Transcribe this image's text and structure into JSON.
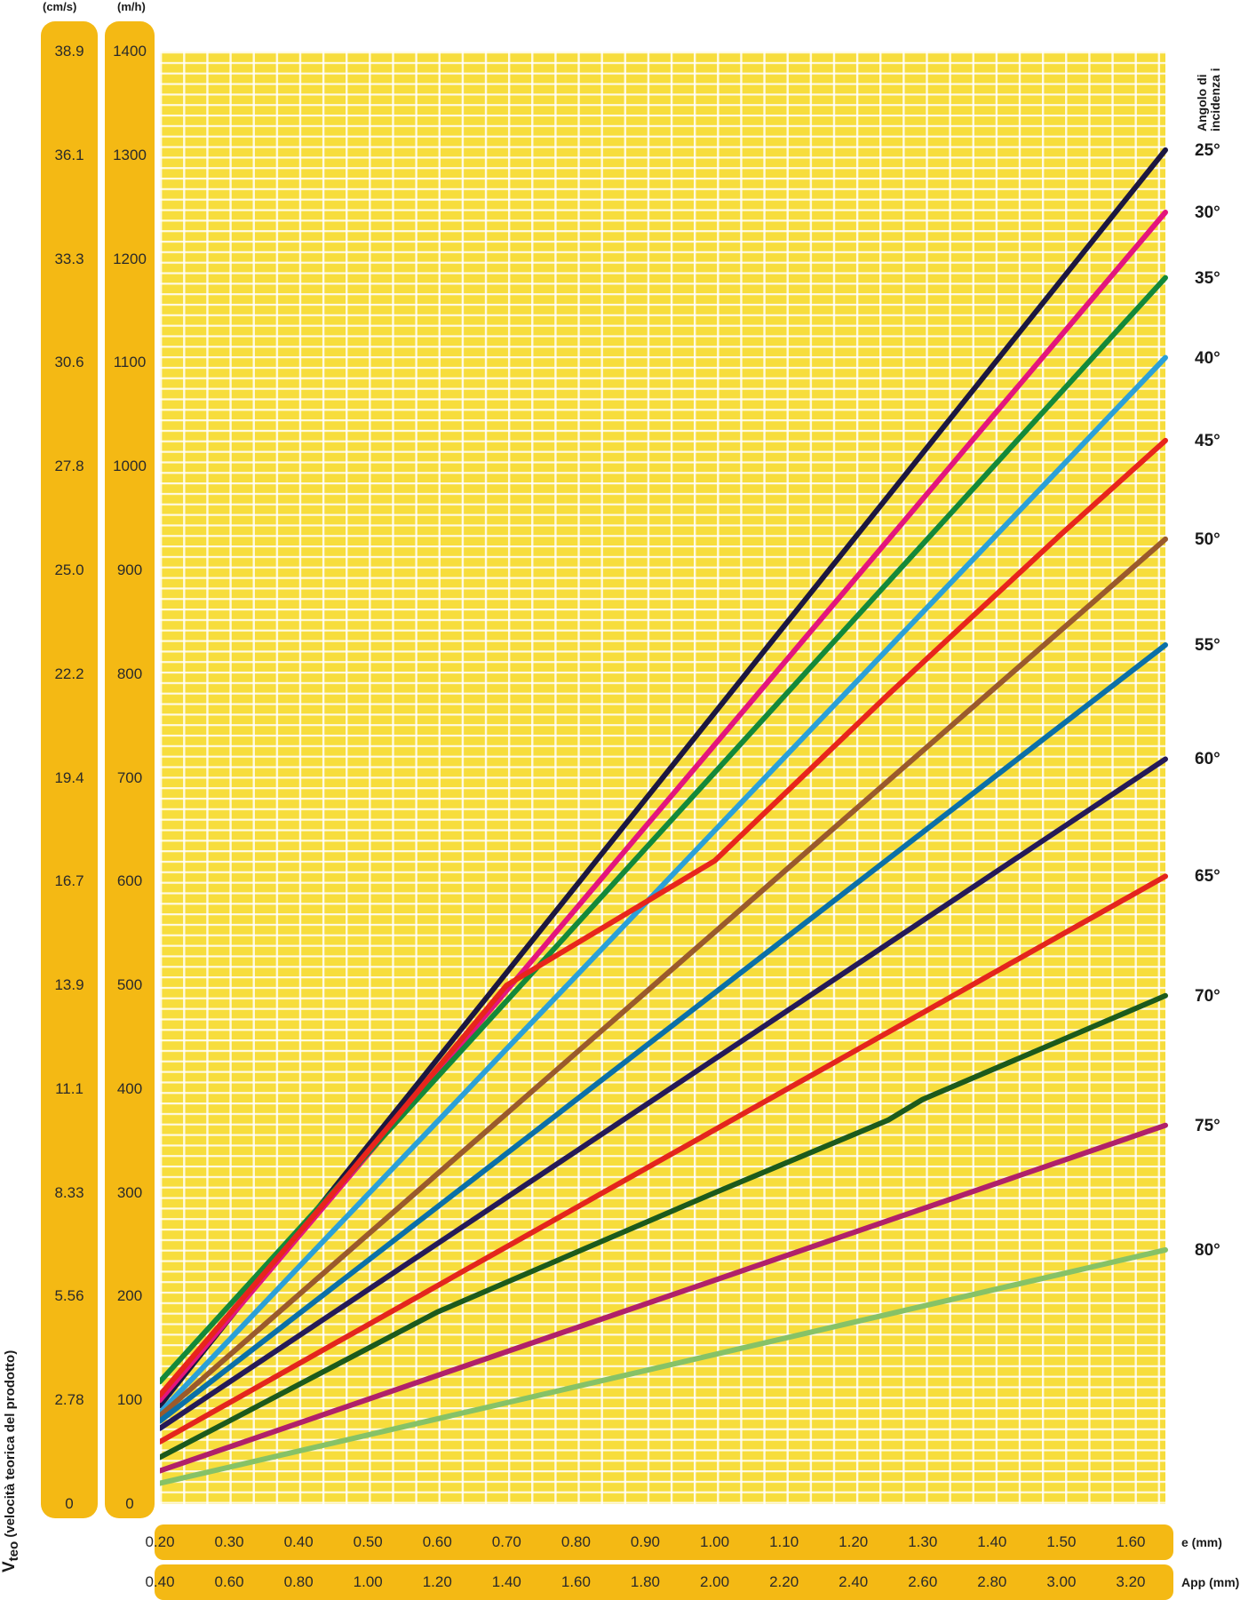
{
  "axes": {
    "y_unit_cms": "(cm/s)",
    "y_unit_mh": "(m/h)",
    "y_title_main": "V",
    "y_title_sub": "teo",
    "y_title_rest": " (velocità teorica del prodotto)",
    "y_ticks_mh": [
      "0",
      "100",
      "200",
      "300",
      "400",
      "500",
      "600",
      "700",
      "800",
      "900",
      "1000",
      "1100",
      "1200",
      "1300",
      "1400"
    ],
    "y_ticks_cms": [
      "0",
      "2.78",
      "5.56",
      "8.33",
      "11.1",
      "13.9",
      "16.7",
      "19.4",
      "22.2",
      "25.0",
      "27.8",
      "30.6",
      "33.3",
      "36.1",
      "38.9"
    ],
    "x_ticks_e": [
      "0.20",
      "0.30",
      "0.40",
      "0.50",
      "0.60",
      "0.70",
      "0.80",
      "0.90",
      "1.00",
      "1.10",
      "1.20",
      "1.30",
      "1.40",
      "1.50",
      "1.60"
    ],
    "x_unit_e": "e (mm)",
    "x_ticks_app": [
      "0.40",
      "0.60",
      "0.80",
      "1.00",
      "1.20",
      "1.40",
      "1.60",
      "1.80",
      "2.00",
      "2.20",
      "2.40",
      "2.60",
      "2.80",
      "3.00",
      "3.20"
    ],
    "x_unit_app": "App (mm)",
    "angle_title_1": "Angolo di",
    "angle_title_2": "incidenza i"
  },
  "chart_data": {
    "type": "line",
    "xlabel": "e (mm)",
    "ylabel": "Vteo (velocità teorica del prodotto)",
    "xlim": [
      0.2,
      1.65
    ],
    "ylim": [
      0,
      1400
    ],
    "grid": true,
    "background_color": "#f7dd3c",
    "series": [
      {
        "name": "25°",
        "color": "#1c1740",
        "points": [
          [
            0.2,
            95
          ],
          [
            1.65,
            1305
          ]
        ]
      },
      {
        "name": "30°",
        "color": "#e4157d",
        "points": [
          [
            0.2,
            100
          ],
          [
            1.65,
            1245
          ]
        ]
      },
      {
        "name": "35°",
        "color": "#13893a",
        "points": [
          [
            0.2,
            118
          ],
          [
            1.65,
            1182
          ]
        ]
      },
      {
        "name": "40°",
        "color": "#2ba0d8",
        "points": [
          [
            0.2,
            88
          ],
          [
            1.65,
            1105
          ]
        ]
      },
      {
        "name": "45°",
        "color": "#e8251c",
        "points": [
          [
            0.2,
            105
          ],
          [
            0.45,
            300
          ],
          [
            0.7,
            500
          ],
          [
            1.0,
            620
          ],
          [
            1.25,
            780
          ],
          [
            1.5,
            935
          ],
          [
            1.65,
            1025
          ]
        ]
      },
      {
        "name": "50°",
        "color": "#9a5a2c",
        "points": [
          [
            0.2,
            85
          ],
          [
            1.65,
            930
          ]
        ]
      },
      {
        "name": "55°",
        "color": "#0b70a8",
        "points": [
          [
            0.2,
            80
          ],
          [
            1.65,
            828
          ]
        ]
      },
      {
        "name": "60°",
        "color": "#251a58",
        "points": [
          [
            0.2,
            73
          ],
          [
            1.65,
            718
          ]
        ]
      },
      {
        "name": "65°",
        "color": "#e4251d",
        "points": [
          [
            0.2,
            60
          ],
          [
            1.65,
            605
          ]
        ]
      },
      {
        "name": "70°",
        "color": "#1c5a1c",
        "points": [
          [
            0.2,
            45
          ],
          [
            0.6,
            185
          ],
          [
            1.0,
            300
          ],
          [
            1.25,
            370
          ],
          [
            1.3,
            390
          ],
          [
            1.65,
            490
          ]
        ]
      },
      {
        "name": "75°",
        "color": "#b0206a",
        "points": [
          [
            0.2,
            32
          ],
          [
            1.65,
            365
          ]
        ]
      },
      {
        "name": "80°",
        "color": "#86c267",
        "points": [
          [
            0.2,
            20
          ],
          [
            1.65,
            245
          ]
        ]
      }
    ]
  }
}
